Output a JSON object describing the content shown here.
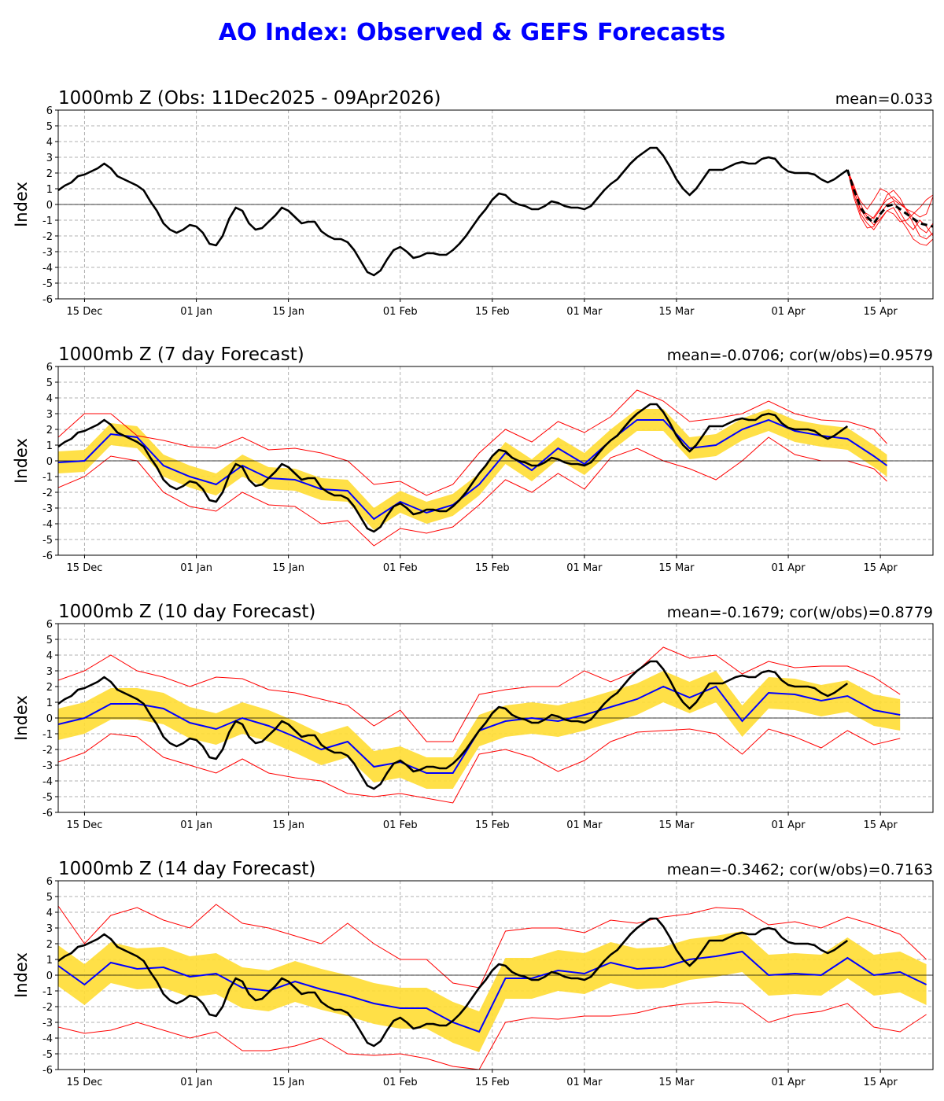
{
  "chart_data": {
    "type": "line",
    "title": "AO Index: Observed & GEFS Forecasts",
    "ylabel": "Index",
    "ylim": [
      -6,
      6
    ],
    "yticks": [
      -6,
      -5,
      -4,
      -3,
      -2,
      -1,
      0,
      1,
      2,
      3,
      4,
      5,
      6
    ],
    "x_unit": "days since 11 Dec 2025",
    "xlim": [
      0,
      133
    ],
    "xticks": [
      {
        "day": 4,
        "label": "15 Dec"
      },
      {
        "day": 21,
        "label": "01 Jan"
      },
      {
        "day": 35,
        "label": "15 Jan"
      },
      {
        "day": 52,
        "label": "01 Feb"
      },
      {
        "day": 66,
        "label": "15 Feb"
      },
      {
        "day": 80,
        "label": "01 Mar"
      },
      {
        "day": 94,
        "label": "15 Mar"
      },
      {
        "day": 111,
        "label": "01 Apr"
      },
      {
        "day": 125,
        "label": "15 Apr"
      }
    ],
    "colors": {
      "observed": "#000000",
      "forecast_mean": "#0000ff",
      "envelope": "#ff0000",
      "spread_band": "#ffdd33",
      "title": "#0000ff"
    },
    "observed": {
      "start_day": 0,
      "values": [
        0.9,
        1.2,
        1.4,
        1.8,
        1.9,
        2.1,
        2.3,
        2.6,
        2.3,
        1.8,
        1.6,
        1.4,
        1.2,
        0.9,
        0.2,
        -0.4,
        -1.2,
        -1.6,
        -1.8,
        -1.6,
        -1.3,
        -1.4,
        -1.8,
        -2.5,
        -2.6,
        -2.0,
        -0.9,
        -0.2,
        -0.4,
        -1.2,
        -1.6,
        -1.5,
        -1.1,
        -0.7,
        -0.2,
        -0.4,
        -0.8,
        -1.2,
        -1.1,
        -1.1,
        -1.7,
        -2.0,
        -2.2,
        -2.2,
        -2.4,
        -2.9,
        -3.6,
        -4.3,
        -4.5,
        -4.2,
        -3.5,
        -2.9,
        -2.7,
        -3.0,
        -3.4,
        -3.3,
        -3.1,
        -3.1,
        -3.2,
        -3.2,
        -2.9,
        -2.5,
        -2.0,
        -1.4,
        -0.8,
        -0.3,
        0.3,
        0.7,
        0.6,
        0.2,
        0.0,
        -0.1,
        -0.3,
        -0.3,
        -0.1,
        0.2,
        0.1,
        -0.1,
        -0.2,
        -0.2,
        -0.3,
        -0.1,
        0.4,
        0.9,
        1.3,
        1.6,
        2.1,
        2.6,
        3.0,
        3.3,
        3.6,
        3.6,
        3.1,
        2.4,
        1.6,
        1.0,
        0.6,
        1.0,
        1.6,
        2.2,
        2.2,
        2.2,
        2.4,
        2.6,
        2.7,
        2.6,
        2.6,
        2.9,
        3.0,
        2.9,
        2.4,
        2.1,
        2.0,
        2.0,
        2.0,
        1.9,
        1.6,
        1.4,
        1.6,
        1.9,
        2.2
      ]
    },
    "panels": [
      {
        "title": "1000mb Z (Obs: 11Dec2025 - 09Apr2026)",
        "stats": "mean=0.033",
        "ensemble": {
          "start_day": 120,
          "mean": [
            2.2,
            0.9,
            -0.2,
            -0.8,
            -1.2,
            -0.6,
            -0.1,
            0.0,
            -0.3,
            -0.6,
            -0.9,
            -1.2,
            -1.3,
            -1.4
          ],
          "members": [
            [
              2.2,
              1.0,
              0.2,
              -0.3,
              0.3,
              1.0,
              0.8,
              0.3,
              0.0,
              -0.3,
              -0.5,
              -0.8,
              -0.6,
              0.5
            ],
            [
              2.2,
              0.6,
              -0.6,
              -1.2,
              -1.6,
              -1.0,
              -0.4,
              -0.2,
              -0.9,
              -1.5,
              -2.2,
              -2.5,
              -2.6,
              -2.2
            ],
            [
              2.2,
              0.8,
              -0.3,
              -1.0,
              -0.8,
              -0.2,
              0.3,
              0.5,
              0.1,
              -0.3,
              -0.9,
              -1.5,
              -1.8,
              -1.2
            ],
            [
              2.2,
              1.2,
              0.0,
              -0.8,
              -1.3,
              -0.9,
              -0.4,
              -0.6,
              -1.1,
              -1.0,
              -0.6,
              -0.2,
              0.3,
              0.6
            ],
            [
              2.2,
              0.4,
              -0.8,
              -1.5,
              -1.4,
              -0.6,
              0.0,
              0.2,
              -0.5,
              -1.2,
              -1.6,
              -1.0,
              -1.4,
              -2.0
            ],
            [
              2.2,
              0.9,
              -0.4,
              -0.6,
              -0.9,
              -0.3,
              0.6,
              0.9,
              0.4,
              -0.4,
              -1.2,
              -2.0,
              -2.2,
              -1.8
            ]
          ]
        }
      },
      {
        "title": "1000mb Z (7 day Forecast)",
        "stats": "mean=-0.0706; cor(w/obs)=0.9579",
        "days": [
          0,
          4,
          8,
          12,
          16,
          20,
          24,
          28,
          32,
          36,
          40,
          44,
          48,
          52,
          56,
          60,
          64,
          68,
          72,
          76,
          80,
          84,
          88,
          92,
          96,
          100,
          104,
          108,
          112,
          116,
          120,
          124,
          126
        ],
        "forecast_mean": [
          -0.1,
          0.0,
          1.7,
          1.5,
          -0.3,
          -1.0,
          -1.5,
          -0.3,
          -1.1,
          -1.2,
          -1.8,
          -1.9,
          -3.7,
          -2.6,
          -3.3,
          -2.8,
          -1.5,
          0.5,
          -0.6,
          0.8,
          -0.2,
          1.3,
          2.6,
          2.6,
          0.8,
          1.0,
          2.0,
          2.6,
          1.9,
          1.6,
          1.4,
          0.3,
          -0.3
        ],
        "envelope_max": [
          1.5,
          3.0,
          3.0,
          1.6,
          1.3,
          0.9,
          0.8,
          1.5,
          0.7,
          0.8,
          0.5,
          0.0,
          -1.5,
          -1.3,
          -2.2,
          -1.5,
          0.5,
          2.0,
          1.2,
          2.5,
          1.8,
          2.8,
          4.5,
          3.8,
          2.5,
          2.7,
          3.0,
          3.8,
          3.0,
          2.6,
          2.5,
          2.0,
          1.1
        ],
        "envelope_min": [
          -1.7,
          -1.0,
          0.3,
          0.0,
          -2.0,
          -2.9,
          -3.2,
          -2.0,
          -2.8,
          -2.9,
          -4.0,
          -3.8,
          -5.4,
          -4.3,
          -4.6,
          -4.2,
          -2.8,
          -1.2,
          -2.0,
          -0.8,
          -1.8,
          0.2,
          0.8,
          0.0,
          -0.5,
          -1.2,
          0.0,
          1.5,
          0.4,
          0.0,
          0.0,
          -0.5,
          -1.3
        ],
        "band_halfwidth": 0.7
      },
      {
        "title": "1000mb Z (10 day Forecast)",
        "stats": "mean=-0.1679; cor(w/obs)=0.8779",
        "days": [
          0,
          4,
          8,
          12,
          16,
          20,
          24,
          28,
          32,
          36,
          40,
          44,
          48,
          52,
          56,
          60,
          64,
          68,
          72,
          76,
          80,
          84,
          88,
          92,
          96,
          100,
          104,
          108,
          112,
          116,
          120,
          124,
          128
        ],
        "forecast_mean": [
          -0.4,
          0.0,
          0.9,
          0.9,
          0.6,
          -0.3,
          -0.7,
          0.0,
          -0.5,
          -1.2,
          -2.0,
          -1.5,
          -3.1,
          -2.8,
          -3.5,
          -3.5,
          -0.8,
          -0.2,
          0.0,
          -0.2,
          0.2,
          0.7,
          1.2,
          2.0,
          1.3,
          2.0,
          -0.2,
          1.6,
          1.5,
          1.1,
          1.4,
          0.5,
          0.2
        ],
        "envelope_max": [
          2.4,
          3.0,
          4.0,
          3.0,
          2.6,
          2.0,
          2.6,
          2.5,
          1.8,
          1.6,
          1.2,
          0.8,
          -0.5,
          0.5,
          -1.5,
          -1.5,
          1.5,
          1.8,
          2.0,
          2.0,
          3.0,
          2.3,
          3.0,
          4.5,
          3.8,
          4.0,
          2.8,
          3.6,
          3.2,
          3.3,
          3.3,
          2.6,
          1.5
        ],
        "envelope_min": [
          -2.8,
          -2.2,
          -1.0,
          -1.2,
          -2.5,
          -3.0,
          -3.5,
          -2.6,
          -3.5,
          -3.8,
          -4.0,
          -4.8,
          -5.0,
          -4.8,
          -5.1,
          -5.4,
          -2.3,
          -2.0,
          -2.5,
          -3.4,
          -2.7,
          -1.5,
          -0.9,
          -0.8,
          -0.7,
          -1.0,
          -2.3,
          -0.7,
          -1.2,
          -1.9,
          -0.8,
          -1.7,
          -1.3
        ],
        "band_halfwidth": 1.0
      },
      {
        "title": "1000mb Z (14 day Forecast)",
        "stats": "mean=-0.3462; cor(w/obs)=0.7163",
        "days": [
          0,
          4,
          8,
          12,
          16,
          20,
          24,
          28,
          32,
          36,
          40,
          44,
          48,
          52,
          56,
          60,
          64,
          68,
          72,
          76,
          80,
          84,
          88,
          92,
          96,
          100,
          104,
          108,
          112,
          116,
          120,
          124,
          128,
          132
        ],
        "forecast_mean": [
          0.6,
          -0.6,
          0.8,
          0.4,
          0.5,
          -0.1,
          0.1,
          -0.8,
          -1.0,
          -0.4,
          -0.9,
          -1.3,
          -1.8,
          -2.1,
          -2.1,
          -3.0,
          -3.6,
          -0.2,
          -0.2,
          0.3,
          0.1,
          0.8,
          0.4,
          0.5,
          1.0,
          1.2,
          1.5,
          0.0,
          0.1,
          0.0,
          1.1,
          0.0,
          0.2,
          -0.6
        ],
        "envelope_max": [
          4.4,
          2.0,
          3.8,
          4.3,
          3.5,
          3.0,
          4.5,
          3.3,
          3.0,
          2.5,
          2.0,
          3.3,
          2.0,
          1.0,
          1.0,
          -0.5,
          -0.8,
          2.8,
          3.0,
          3.0,
          2.7,
          3.5,
          3.3,
          3.7,
          3.9,
          4.3,
          4.2,
          3.2,
          3.4,
          3.0,
          3.7,
          3.2,
          2.6,
          1.0
        ],
        "envelope_min": [
          -3.3,
          -3.7,
          -3.5,
          -3.0,
          -3.5,
          -4.0,
          -3.6,
          -4.8,
          -4.8,
          -4.5,
          -4.0,
          -5.0,
          -5.1,
          -5.0,
          -5.3,
          -5.8,
          -6.0,
          -3.0,
          -2.7,
          -2.8,
          -2.6,
          -2.6,
          -2.4,
          -2.0,
          -1.8,
          -1.7,
          -1.8,
          -3.0,
          -2.5,
          -2.3,
          -1.8,
          -3.3,
          -3.6,
          -2.5
        ],
        "band_halfwidth": 1.3
      }
    ]
  }
}
